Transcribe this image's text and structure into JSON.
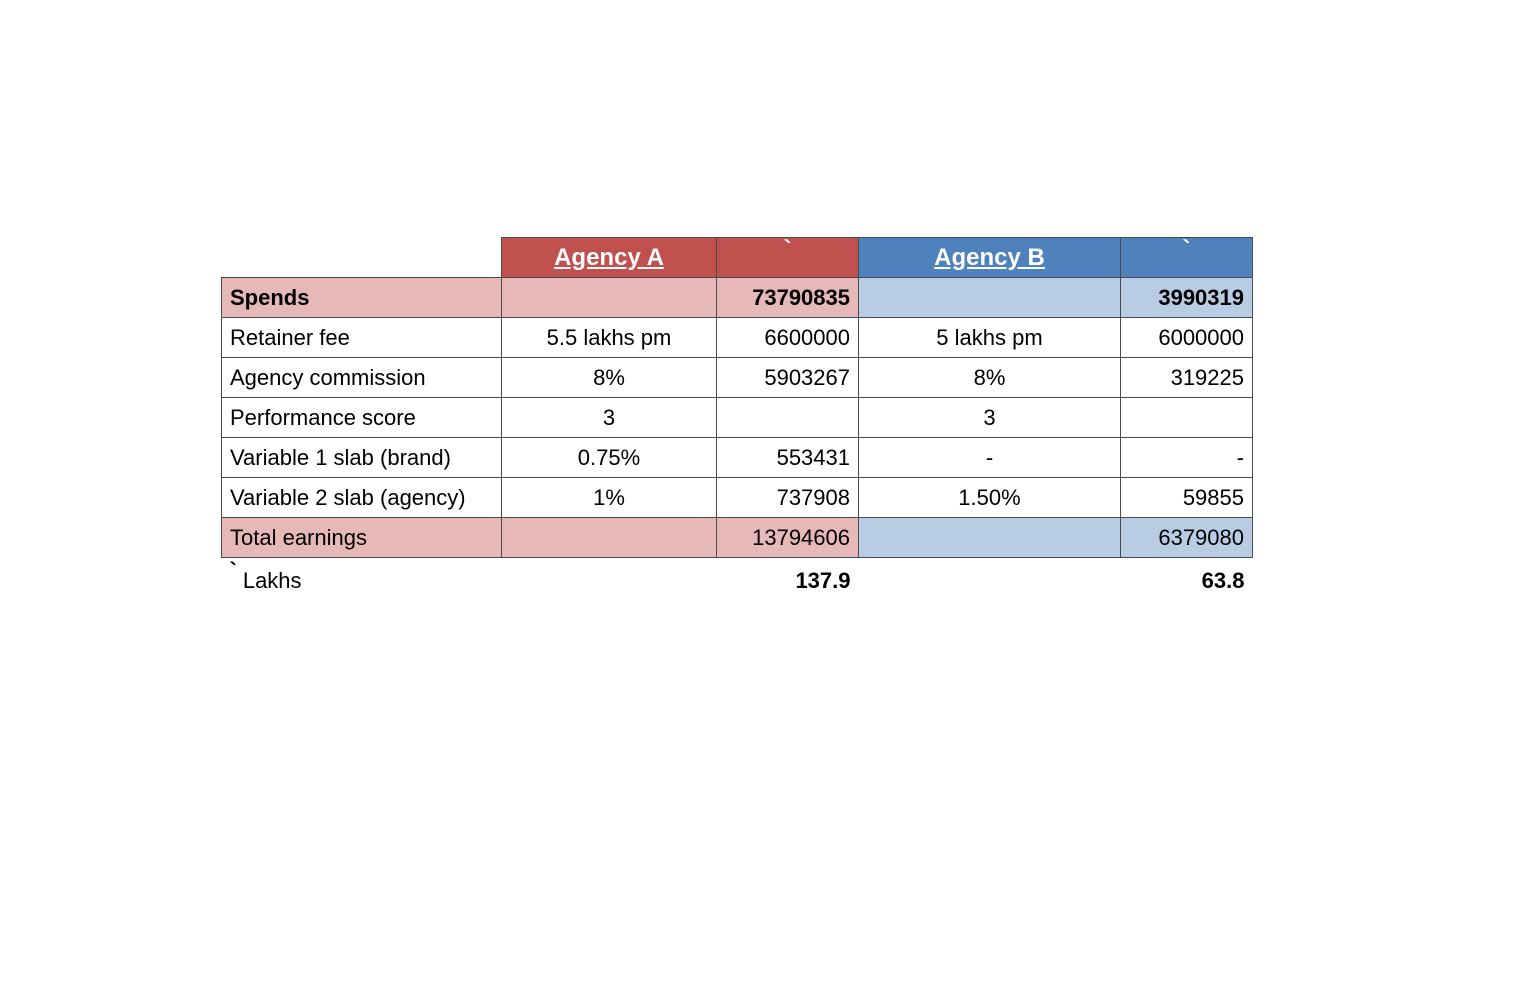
{
  "header": {
    "agency_a": "Agency A",
    "agency_a_currency": "`",
    "agency_b": "Agency B",
    "agency_b_currency": "`"
  },
  "rows": [
    {
      "label": "Spends",
      "a_rate": "",
      "a_value": "73790835",
      "b_rate": "",
      "b_value": "3990319"
    },
    {
      "label": "Retainer fee",
      "a_rate": "5.5 lakhs pm",
      "a_value": "6600000",
      "b_rate": "5 lakhs pm",
      "b_value": "6000000"
    },
    {
      "label": "Agency commission",
      "a_rate": "8%",
      "a_value": "5903267",
      "b_rate": "8%",
      "b_value": "319225"
    },
    {
      "label": "Performance score",
      "a_rate": "3",
      "a_value": "",
      "b_rate": "3",
      "b_value": ""
    },
    {
      "label": "Variable 1 slab (brand)",
      "a_rate": "0.75%",
      "a_value": "553431",
      "b_rate": "-",
      "b_value": "-"
    },
    {
      "label": "Variable 2 slab (agency)",
      "a_rate": "1%",
      "a_value": "737908",
      "b_rate": "1.50%",
      "b_value": "59855"
    },
    {
      "label": "Total earnings",
      "a_rate": "",
      "a_value": "13794606",
      "b_rate": "",
      "b_value": "6379080"
    }
  ],
  "footer": {
    "currency_symbol": "`",
    "unit_label": "Lakhs",
    "a_lakhs": "137.9",
    "b_lakhs": "63.8"
  },
  "colors": {
    "agency_a_header": "#c0504d",
    "agency_a_highlight": "#e6b8b7",
    "agency_b_header": "#4f81bd",
    "agency_b_highlight": "#b8cce4"
  }
}
